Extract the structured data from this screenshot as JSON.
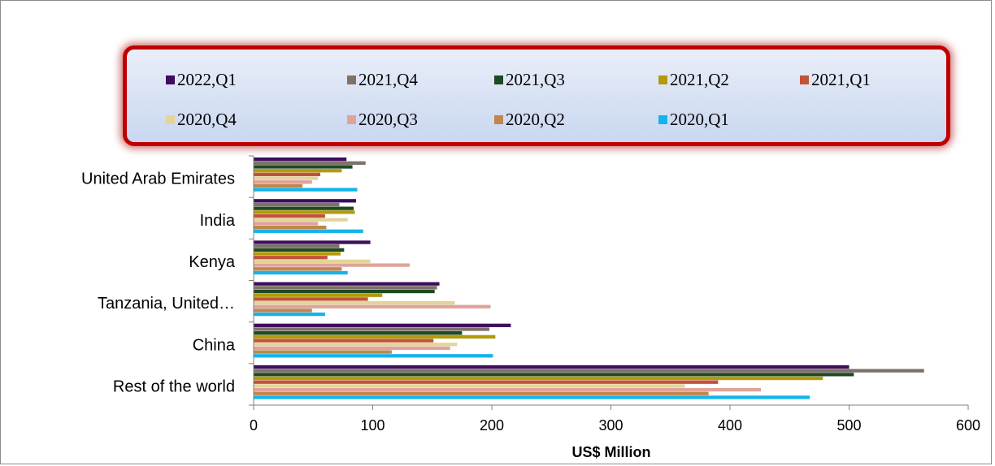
{
  "chart_data": {
    "type": "bar",
    "orientation": "horizontal",
    "categories": [
      "United Arab Emirates",
      "India",
      "Kenya",
      "Tanzania, United…",
      "China",
      "Rest of the world"
    ],
    "xlabel": "US$ Million",
    "ylabel": "",
    "xlim": [
      0,
      600
    ],
    "xticks": [
      "0",
      "100",
      "200",
      "300",
      "400",
      "500",
      "600"
    ],
    "grid": false,
    "legend_position": "top",
    "series": [
      {
        "name": "2022,Q1",
        "color": "#3d0d5e",
        "values": [
          78,
          86,
          98,
          156,
          216,
          500
        ]
      },
      {
        "name": "2021,Q4",
        "color": "#7f7169",
        "values": [
          94,
          72,
          72,
          154,
          198,
          563
        ]
      },
      {
        "name": "2021,Q3",
        "color": "#1e4a22",
        "values": [
          83,
          84,
          76,
          152,
          175,
          504
        ]
      },
      {
        "name": "2021,Q2",
        "color": "#b39a0a",
        "values": [
          74,
          85,
          73,
          108,
          203,
          478
        ]
      },
      {
        "name": "2021,Q1",
        "color": "#c0543a",
        "values": [
          56,
          60,
          62,
          96,
          151,
          390
        ]
      },
      {
        "name": "2020,Q4",
        "color": "#e3d49a",
        "values": [
          54,
          79,
          98,
          169,
          171,
          362
        ]
      },
      {
        "name": "2020,Q3",
        "color": "#e0a39a",
        "values": [
          49,
          54,
          131,
          199,
          165,
          426
        ]
      },
      {
        "name": "2020,Q2",
        "color": "#c0864c",
        "values": [
          41,
          61,
          74,
          49,
          116,
          382
        ]
      },
      {
        "name": "2020,Q1",
        "color": "#14b4ea",
        "values": [
          87,
          92,
          79,
          60,
          201,
          467
        ]
      }
    ]
  }
}
